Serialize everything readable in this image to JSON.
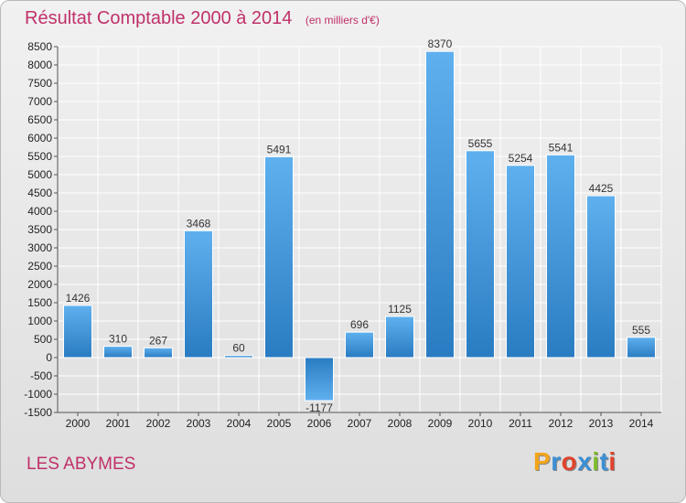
{
  "header": {
    "title": "Résultat Comptable 2000 à 2014",
    "subtitle": "(en milliers d'€)"
  },
  "footer": {
    "place": "LES ABYMES",
    "logo_letters": [
      "P",
      "r",
      "o",
      "x",
      "i",
      "t",
      "i"
    ],
    "logo_colors": [
      "#f3a51b",
      "#3b8fd4",
      "#e1432c",
      "#3b8fd4",
      "#7dbb2a",
      "#3b8fd4",
      "#e1432c"
    ]
  },
  "chart_data": {
    "type": "bar",
    "title": "Résultat Comptable 2000 à 2014",
    "subtitle": "(en milliers d'€)",
    "categories": [
      "2000",
      "2001",
      "2002",
      "2003",
      "2004",
      "2005",
      "2006",
      "2007",
      "2008",
      "2009",
      "2010",
      "2011",
      "2012",
      "2013",
      "2014"
    ],
    "values": [
      1426,
      310,
      267,
      3468,
      60,
      5491,
      -1177,
      696,
      1125,
      8370,
      5655,
      5254,
      5541,
      4425,
      555
    ],
    "labels": [
      "1426",
      "310",
      "267",
      "3468",
      "60",
      "5491",
      "-1177",
      "696",
      "1125",
      "8370",
      "5655",
      "5254",
      "5541",
      "4425",
      "555"
    ],
    "ylim": [
      -1500,
      8500
    ],
    "yticks": [
      -1500,
      -1000,
      -500,
      0,
      500,
      1000,
      1500,
      2000,
      2500,
      3000,
      3500,
      4000,
      4500,
      5000,
      5500,
      6000,
      6500,
      7000,
      7500,
      8000,
      8500
    ],
    "grid": true,
    "bar_color": "#3a8fd8"
  }
}
